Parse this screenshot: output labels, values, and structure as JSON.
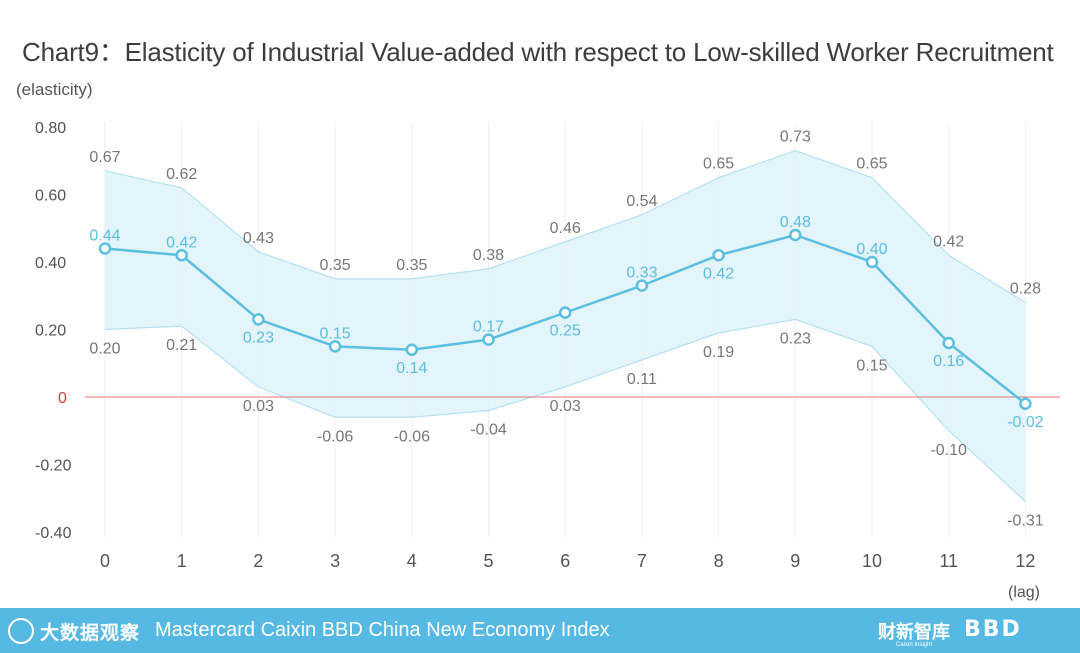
{
  "title": "Chart9：Elasticity of Industrial Value-added with respect to Low-skilled Worker Recruitment",
  "footer": {
    "left_logo_text": "大数据观察",
    "index_name": "Mastercard Caixin BBD China New Economy Index",
    "caixin_logo": "财新智库",
    "caixin_logo_sub": "Caixin Insight",
    "bbd_logo": "BBD"
  },
  "colors": {
    "line": "#5bbfe0",
    "band_fill": "#dff2fa",
    "band_edge": "#b5e1f1",
    "zero_line": "#e07a7a",
    "zero_label": "#d93a3a",
    "grid": "#eeeeee",
    "bound_label": "#777777",
    "footer_bg": "#55b9e3"
  },
  "chart_data": {
    "type": "line",
    "ylabel": "(elasticity)",
    "xlabel": "(lag)",
    "x": [
      0,
      1,
      2,
      3,
      4,
      5,
      6,
      7,
      8,
      9,
      10,
      11,
      12
    ],
    "ylim": [
      -0.4,
      0.8
    ],
    "yticks": [
      -0.4,
      -0.2,
      0,
      0.2,
      0.4,
      0.6,
      0.8
    ],
    "ytick_labels": [
      "-0.40",
      "-0.20",
      "0",
      "0.20",
      "0.40",
      "0.60",
      "0.80"
    ],
    "grid": "vertical",
    "series": [
      {
        "role": "estimate",
        "values": [
          0.44,
          0.42,
          0.23,
          0.15,
          0.14,
          0.17,
          0.25,
          0.33,
          0.42,
          0.48,
          0.4,
          0.16,
          -0.02
        ],
        "labels": [
          "0.44",
          "0.42",
          "0.23",
          "0.15",
          "0.14",
          "0.17",
          "0.25",
          "0.33",
          "0.42",
          "0.48",
          "0.40",
          "0.16",
          "-0.02"
        ]
      },
      {
        "role": "upper",
        "values": [
          0.67,
          0.62,
          0.43,
          0.35,
          0.35,
          0.38,
          0.46,
          0.54,
          0.65,
          0.73,
          0.65,
          0.42,
          0.28
        ],
        "labels": [
          "0.67",
          "0.62",
          "0.43",
          "0.35",
          "0.35",
          "0.38",
          "0.46",
          "0.54",
          "0.65",
          "0.73",
          "0.65",
          "0.42",
          "0.28"
        ]
      },
      {
        "role": "lower",
        "values": [
          0.2,
          0.21,
          0.03,
          -0.06,
          -0.06,
          -0.04,
          0.03,
          0.11,
          0.19,
          0.23,
          0.15,
          -0.1,
          -0.31
        ],
        "labels": [
          "0.20",
          "0.21",
          "0.03",
          "-0.06",
          "-0.06",
          "-0.04",
          "0.03",
          "0.11",
          "0.19",
          "0.23",
          "0.15",
          "-0.10",
          "-0.31"
        ]
      }
    ]
  }
}
